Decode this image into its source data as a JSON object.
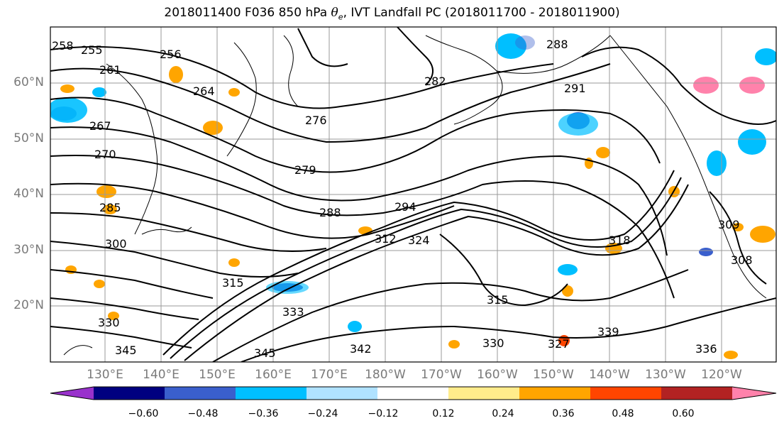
{
  "title": {
    "prefix": "2018011400 F036 850 hPa ",
    "symbol": "θ",
    "subscript": "e",
    "suffix": ", IVT Landfall PC (2018011700 - 2018011900)"
  },
  "map": {
    "lat_labels": [
      "60°N",
      "50°N",
      "40°N",
      "30°N",
      "20°N"
    ],
    "lon_labels": [
      "130°E",
      "140°E",
      "150°E",
      "160°E",
      "170°E",
      "180°W",
      "170°W",
      "160°W",
      "150°W",
      "140°W",
      "130°W",
      "120°W"
    ],
    "contour_labels": [
      "258",
      "255",
      "256",
      "261",
      "264",
      "267",
      "270",
      "276",
      "279",
      "282",
      "288",
      "288",
      "291",
      "294",
      "312",
      "324",
      "300",
      "285",
      "315",
      "315",
      "318",
      "309",
      "308",
      "330",
      "330",
      "336",
      "342",
      "345",
      "345",
      "327",
      "333",
      "339"
    ]
  },
  "colorbar": {
    "colors": [
      "#9932cc",
      "#000080",
      "#3a5fcd",
      "#00bfff",
      "#b0e2ff",
      "#ffffff",
      "#ffec8b",
      "#ffa500",
      "#ff4500",
      "#b22222",
      "#ff82ab"
    ],
    "tick_labels": [
      "−0.60",
      "−0.48",
      "−0.36",
      "−0.24",
      "−0.12",
      "0.12",
      "0.24",
      "0.36",
      "0.48",
      "0.60"
    ]
  }
}
